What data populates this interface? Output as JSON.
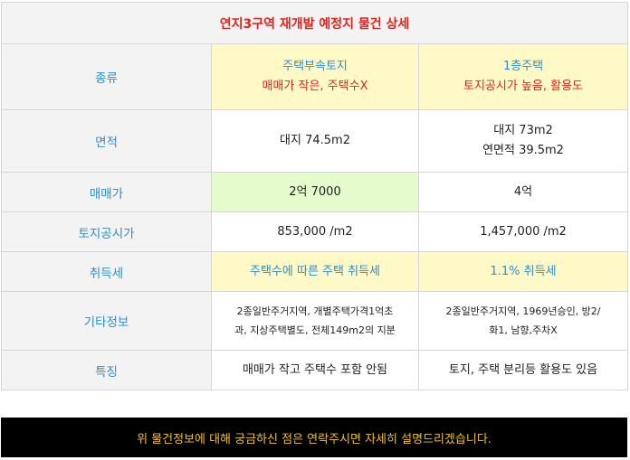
{
  "table": {
    "title": "연지3구역 재개발 예정지 물건 상세",
    "rows": {
      "type": {
        "label": "종류",
        "a_line1": "주택부속토지",
        "a_line2": "매매가 작은, 주택수X",
        "b_line1": "1층주택",
        "b_line2": "토지공시가 높음, 활용도"
      },
      "area": {
        "label": "면적",
        "a": "대지 74.5m2",
        "b_line1": "대지 73m2",
        "b_line2": "연면적 39.5m2"
      },
      "price": {
        "label": "매매가",
        "a": "2억 7000",
        "b": "4억"
      },
      "land_price": {
        "label": "토지공시가",
        "a": "853,000 /m2",
        "b": "1,457,000 /m2"
      },
      "tax": {
        "label": "취득세",
        "a": "주택수에 따른 주택 취득세",
        "b": "1.1% 취득세"
      },
      "etc": {
        "label": "기타정보",
        "a_line1": "2종일반주거지역, 개별주택가격1억초",
        "a_line2": "과, 지상주택별도, 전체149m2의 지분",
        "b_line1": "2종일반주거지역, 1969년승인, 방2/",
        "b_line2": "화1, 남향,주차X"
      },
      "feature": {
        "label": "특징",
        "a": "매매가 작고 주택수 포함 안됨",
        "b": "토지, 주택 분리등 활용도 있음"
      }
    }
  },
  "footer": {
    "text": "위 물건정보에 대해 궁금하신 점은 연락주시면 자세히 설명드리겠습니다."
  },
  "colors": {
    "title_red": "#e2231a",
    "label_blue": "#2a8fd6",
    "yellow_cell": "#fff9c8",
    "green_cell": "#e4fbcc",
    "footer_text": "#f0c020"
  }
}
